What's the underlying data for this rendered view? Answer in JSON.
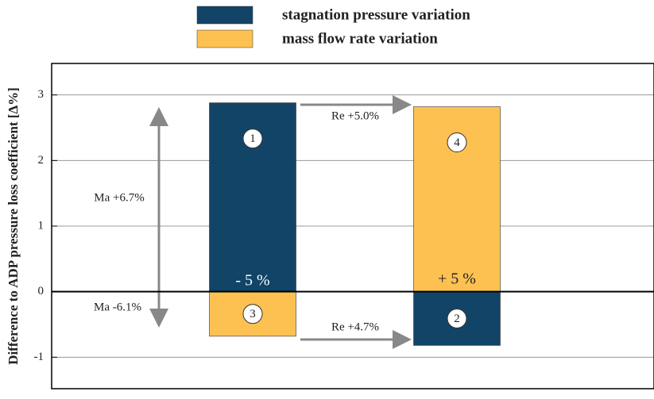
{
  "chart_data": {
    "type": "bar",
    "ylabel": "Difference to ADP pressure loss coefficient [Δ%]",
    "categories": [
      null,
      null
    ],
    "series": [
      {
        "name": "stagnation pressure variation",
        "color": "#124468",
        "values": [
          2.88,
          -0.82
        ],
        "labels": [
          "1",
          "2"
        ]
      },
      {
        "name": "mass flow rate variation",
        "color": "#fdc152",
        "values": [
          -0.68,
          2.82
        ],
        "labels": [
          "3",
          "4"
        ]
      }
    ],
    "ylim": [
      -1.48,
      3.48
    ],
    "yticks": [
      -1,
      0,
      1,
      2,
      3
    ],
    "grid": true,
    "annotations": [
      "- 5 %",
      "+ 5 %",
      "Re +5.0%",
      "Re +4.7%",
      "Ma +6.7%",
      "Ma -6.1%"
    ]
  }
}
